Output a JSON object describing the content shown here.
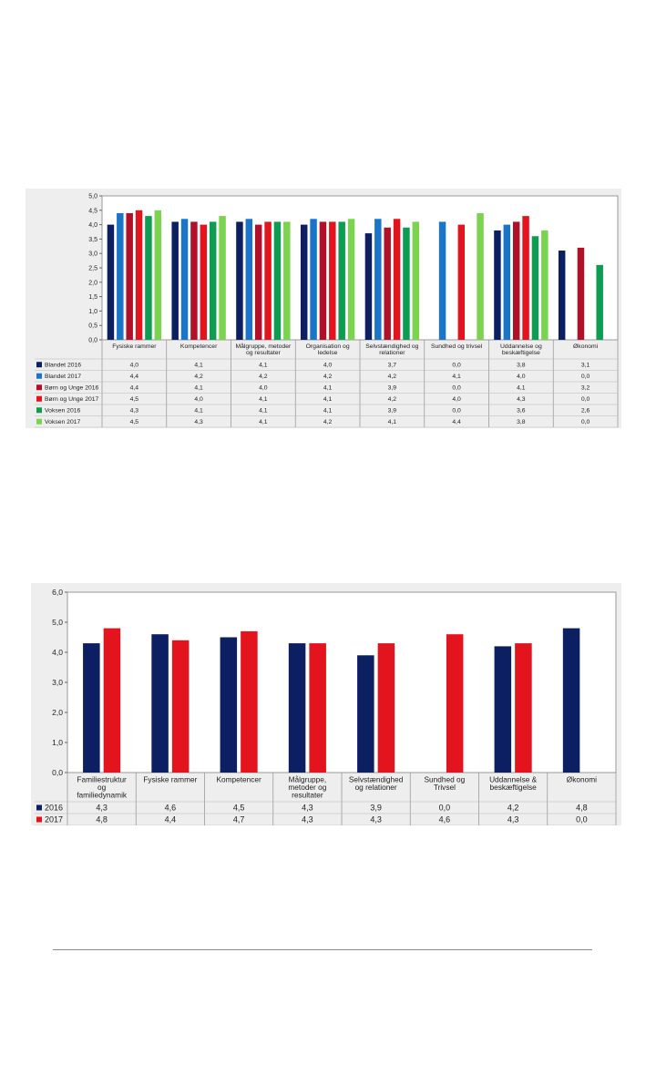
{
  "chart_data": [
    {
      "type": "bar",
      "data_table": true,
      "categories": [
        "Fysiske rammer",
        "Kompetencer",
        "Målgruppe, metoder og resultater",
        "Organisation og ledelse",
        "Selvstændighed og relationer",
        "Sundhed og trivsel",
        "Uddannelse og beskæftigelse",
        "Økonomi"
      ],
      "category_lines": [
        [
          "Fysiske rammer"
        ],
        [
          "Kompetencer"
        ],
        [
          "Målgruppe, metoder",
          "og resultater"
        ],
        [
          "Organisation og",
          "ledelse"
        ],
        [
          "Selvstændighed og",
          "relationer"
        ],
        [
          "Sundhed og trivsel"
        ],
        [
          "Uddannelse og",
          "beskæftigelse"
        ],
        [
          "Økonomi"
        ]
      ],
      "ylim": [
        0,
        5
      ],
      "yticks": [
        "0,0",
        "0,5",
        "1,0",
        "1,5",
        "2,0",
        "2,5",
        "3,0",
        "3,5",
        "4,0",
        "4,5",
        "5,0"
      ],
      "series": [
        {
          "name": "Blandet 2016",
          "color": "#0c1f63",
          "values": [
            4.0,
            4.1,
            4.1,
            4.0,
            3.7,
            0.0,
            3.8,
            3.1
          ],
          "labels": [
            "4,0",
            "4,1",
            "4,1",
            "4,0",
            "3,7",
            "0,0",
            "3,8",
            "3,1"
          ]
        },
        {
          "name": "Blandet 2017",
          "color": "#1a75c9",
          "values": [
            4.4,
            4.2,
            4.2,
            4.2,
            4.2,
            4.1,
            4.0,
            0.0
          ],
          "labels": [
            "4,4",
            "4,2",
            "4,2",
            "4,2",
            "4,2",
            "4,1",
            "4,0",
            "0,0"
          ]
        },
        {
          "name": "Børn og Unge 2016",
          "color": "#b01028",
          "values": [
            4.4,
            4.1,
            4.0,
            4.1,
            3.9,
            0.0,
            4.1,
            3.2
          ],
          "labels": [
            "4,4",
            "4,1",
            "4,0",
            "4,1",
            "3,9",
            "0,0",
            "4,1",
            "3,2"
          ]
        },
        {
          "name": "Børn og Unge 2017",
          "color": "#e3141d",
          "values": [
            4.5,
            4.0,
            4.1,
            4.1,
            4.2,
            4.0,
            4.3,
            0.0
          ],
          "labels": [
            "4,5",
            "4,0",
            "4,1",
            "4,1",
            "4,2",
            "4,0",
            "4,3",
            "0,0"
          ]
        },
        {
          "name": "Voksen 2016",
          "color": "#0e9c52",
          "values": [
            4.3,
            4.1,
            4.1,
            4.1,
            3.9,
            0.0,
            3.6,
            2.6
          ],
          "labels": [
            "4,3",
            "4,1",
            "4,1",
            "4,1",
            "3,9",
            "0,0",
            "3,6",
            "2,6"
          ]
        },
        {
          "name": "Voksen 2017",
          "color": "#7bd34f",
          "values": [
            4.5,
            4.3,
            4.1,
            4.2,
            4.1,
            4.4,
            3.8,
            0.0
          ],
          "labels": [
            "4,5",
            "4,3",
            "4,1",
            "4,2",
            "4,1",
            "4,4",
            "3,8",
            "0,0"
          ]
        }
      ]
    },
    {
      "type": "bar",
      "data_table": true,
      "categories": [
        "Familiestruktur og familiedynamik",
        "Fysiske rammer",
        "Kompetencer",
        "Målgruppe, metoder og resultater",
        "Selvstændighed og relationer",
        "Sundhed og Trivsel",
        "Uddannelse & beskæftigelse",
        "Økonomi"
      ],
      "category_lines": [
        [
          "Familiestruktur",
          "og",
          "familiedynamik"
        ],
        [
          "Fysiske rammer"
        ],
        [
          "Kompetencer"
        ],
        [
          "Målgruppe,",
          "metoder og",
          "resultater"
        ],
        [
          "Selvstændighed",
          "og relationer"
        ],
        [
          "Sundhed og",
          "Trivsel"
        ],
        [
          "Uddannelse &",
          "beskæftigelse"
        ],
        [
          "Økonomi"
        ]
      ],
      "ylim": [
        0,
        6
      ],
      "yticks": [
        "0,0",
        "1,0",
        "2,0",
        "3,0",
        "4,0",
        "5,0",
        "6,0"
      ],
      "series": [
        {
          "name": "2016",
          "color": "#0c1f63",
          "values": [
            4.3,
            4.6,
            4.5,
            4.3,
            3.9,
            0.0,
            4.2,
            4.8
          ],
          "labels": [
            "4,3",
            "4,6",
            "4,5",
            "4,3",
            "3,9",
            "0,0",
            "4,2",
            "4,8"
          ]
        },
        {
          "name": "2017",
          "color": "#e3141d",
          "values": [
            4.8,
            4.4,
            4.7,
            4.3,
            4.3,
            4.6,
            4.3,
            0.0
          ],
          "labels": [
            "4,8",
            "4,4",
            "4,7",
            "4,3",
            "4,3",
            "4,6",
            "4,3",
            "0,0"
          ]
        }
      ]
    }
  ]
}
